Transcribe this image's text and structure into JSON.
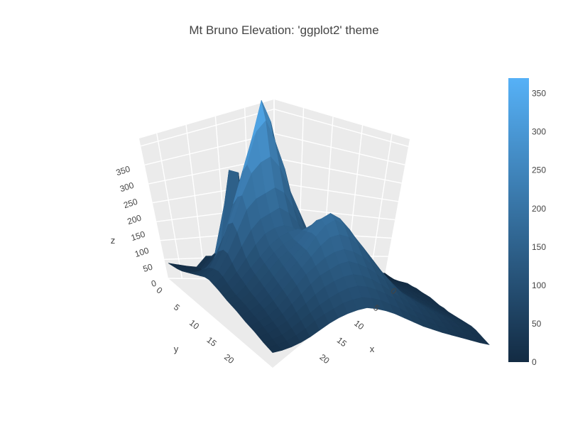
{
  "chart_data": {
    "type": "surface",
    "title": "Mt Bruno Elevation: 'ggplot2' theme",
    "xlabel": "x",
    "ylabel": "y",
    "zlabel": "z",
    "xlim": [
      0,
      23
    ],
    "ylim": [
      0,
      23
    ],
    "zlim": [
      0,
      370
    ],
    "x_ticks": [
      "0",
      "5",
      "10",
      "15",
      "20"
    ],
    "y_ticks": [
      "0",
      "5",
      "10",
      "15",
      "20"
    ],
    "z_ticks": [
      "0",
      "50",
      "100",
      "150",
      "200",
      "250",
      "300",
      "350"
    ],
    "colorbar": {
      "range": [
        0,
        370
      ],
      "ticks": [
        "0",
        "50",
        "100",
        "150",
        "200",
        "250",
        "300",
        "350"
      ],
      "colors": [
        "#132B43",
        "#56B1F7"
      ]
    },
    "theme": "ggplot2",
    "grid": true,
    "surface_z": [
      [
        28,
        25,
        22,
        20,
        40,
        40,
        28,
        28,
        25,
        22,
        22,
        20,
        18,
        15,
        14,
        12,
        10,
        10,
        8,
        6,
        5,
        5,
        4,
        3
      ],
      [
        30,
        28,
        26,
        24,
        45,
        60,
        35,
        30,
        30,
        28,
        26,
        24,
        22,
        20,
        18,
        16,
        14,
        12,
        10,
        8,
        6,
        5,
        4,
        4
      ],
      [
        32,
        30,
        30,
        28,
        60,
        150,
        150,
        60,
        40,
        35,
        32,
        30,
        28,
        26,
        24,
        22,
        20,
        18,
        16,
        14,
        12,
        10,
        8,
        6
      ],
      [
        35,
        34,
        32,
        30,
        60,
        220,
        215,
        80,
        60,
        50,
        40,
        35,
        35,
        32,
        30,
        28,
        26,
        25,
        22,
        20,
        18,
        15,
        12,
        10
      ],
      [
        40,
        40,
        45,
        60,
        80,
        120,
        140,
        100,
        90,
        60,
        50,
        45,
        45,
        40,
        35,
        32,
        30,
        30,
        28,
        25,
        22,
        20,
        18,
        15
      ],
      [
        45,
        50,
        60,
        90,
        120,
        170,
        200,
        220,
        180,
        120,
        80,
        60,
        55,
        50,
        45,
        40,
        38,
        35,
        32,
        30,
        28,
        25,
        22,
        20
      ],
      [
        50,
        60,
        80,
        120,
        180,
        240,
        300,
        370,
        330,
        220,
        140,
        90,
        70,
        60,
        55,
        50,
        45,
        42,
        40,
        36,
        32,
        28,
        25,
        22
      ],
      [
        55,
        70,
        100,
        150,
        200,
        260,
        320,
        340,
        300,
        250,
        180,
        120,
        90,
        70,
        60,
        55,
        50,
        48,
        45,
        40,
        36,
        32,
        28,
        25
      ],
      [
        60,
        75,
        110,
        160,
        210,
        250,
        270,
        280,
        260,
        220,
        180,
        140,
        100,
        80,
        65,
        60,
        55,
        52,
        48,
        44,
        40,
        35,
        30,
        26
      ],
      [
        62,
        78,
        110,
        150,
        190,
        210,
        220,
        230,
        220,
        190,
        160,
        130,
        110,
        90,
        75,
        65,
        60,
        56,
        52,
        48,
        42,
        38,
        32,
        28
      ],
      [
        60,
        75,
        100,
        130,
        160,
        180,
        190,
        200,
        190,
        170,
        150,
        130,
        110,
        95,
        80,
        70,
        64,
        60,
        55,
        50,
        45,
        40,
        34,
        30
      ],
      [
        58,
        70,
        90,
        115,
        140,
        160,
        170,
        175,
        170,
        160,
        145,
        130,
        115,
        100,
        88,
        78,
        70,
        64,
        58,
        52,
        46,
        40,
        35,
        30
      ],
      [
        55,
        65,
        85,
        105,
        125,
        145,
        160,
        170,
        175,
        170,
        160,
        150,
        140,
        125,
        110,
        95,
        80,
        70,
        62,
        55,
        48,
        42,
        36,
        30
      ],
      [
        52,
        62,
        80,
        100,
        120,
        140,
        155,
        165,
        180,
        190,
        185,
        175,
        165,
        150,
        130,
        110,
        90,
        76,
        66,
        58,
        50,
        44,
        38,
        32
      ],
      [
        50,
        60,
        75,
        95,
        115,
        135,
        150,
        165,
        185,
        205,
        210,
        200,
        185,
        165,
        140,
        115,
        95,
        80,
        70,
        60,
        52,
        45,
        38,
        32
      ],
      [
        48,
        58,
        72,
        90,
        110,
        130,
        148,
        165,
        190,
        215,
        225,
        215,
        195,
        170,
        145,
        120,
        98,
        82,
        72,
        62,
        54,
        46,
        40,
        34
      ],
      [
        45,
        55,
        68,
        85,
        105,
        125,
        145,
        165,
        190,
        210,
        220,
        210,
        190,
        168,
        145,
        122,
        100,
        84,
        74,
        64,
        56,
        48,
        42,
        36
      ],
      [
        42,
        52,
        65,
        80,
        100,
        120,
        140,
        160,
        180,
        195,
        200,
        195,
        180,
        160,
        140,
        120,
        100,
        86,
        76,
        66,
        58,
        50,
        44,
        38
      ],
      [
        40,
        50,
        60,
        75,
        95,
        115,
        135,
        150,
        165,
        175,
        180,
        175,
        165,
        150,
        135,
        118,
        100,
        88,
        78,
        68,
        60,
        52,
        46,
        40
      ],
      [
        38,
        46,
        56,
        70,
        88,
        106,
        124,
        140,
        150,
        160,
        165,
        160,
        152,
        140,
        126,
        112,
        98,
        88,
        78,
        70,
        62,
        54,
        48,
        42
      ],
      [
        35,
        42,
        52,
        64,
        80,
        96,
        112,
        126,
        136,
        144,
        148,
        145,
        138,
        128,
        116,
        104,
        92,
        84,
        76,
        68,
        60,
        54,
        48,
        42
      ],
      [
        32,
        38,
        46,
        58,
        72,
        86,
        100,
        112,
        122,
        130,
        134,
        132,
        126,
        118,
        108,
        96,
        86,
        78,
        70,
        64,
        58,
        52,
        46,
        40
      ],
      [
        30,
        35,
        42,
        52,
        64,
        78,
        90,
        100,
        110,
        116,
        120,
        118,
        114,
        106,
        98,
        88,
        80,
        72,
        66,
        60,
        54,
        48,
        44,
        38
      ],
      [
        28,
        32,
        38,
        46,
        56,
        68,
        80,
        90,
        98,
        104,
        108,
        106,
        102,
        96,
        88,
        80,
        72,
        66,
        60,
        55,
        50,
        45,
        40,
        36
      ]
    ]
  }
}
